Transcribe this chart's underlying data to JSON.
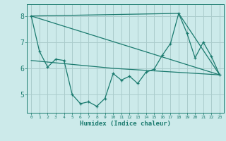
{
  "xlabel": "Humidex (Indice chaleur)",
  "bg_color": "#cceaea",
  "grid_color": "#aacccc",
  "line_color": "#1a7a6e",
  "xlim": [
    -0.5,
    23.5
  ],
  "ylim": [
    4.3,
    8.45
  ],
  "yticks": [
    5,
    6,
    7,
    8
  ],
  "xticks": [
    0,
    1,
    2,
    3,
    4,
    5,
    6,
    7,
    8,
    9,
    10,
    11,
    12,
    13,
    14,
    15,
    16,
    17,
    18,
    19,
    20,
    21,
    22,
    23
  ],
  "line1_x": [
    0,
    1,
    2,
    3,
    4,
    5,
    6,
    7,
    8,
    9,
    10,
    11,
    12,
    13,
    14,
    15,
    16,
    17,
    18,
    19,
    20,
    21,
    22,
    23
  ],
  "line1_y": [
    8.0,
    6.65,
    6.05,
    6.35,
    6.3,
    5.0,
    4.65,
    4.72,
    4.55,
    4.85,
    5.8,
    5.55,
    5.7,
    5.42,
    5.85,
    5.97,
    6.5,
    6.95,
    8.1,
    7.35,
    6.4,
    7.0,
    6.45,
    5.75
  ],
  "line2_x": [
    0,
    23
  ],
  "line2_y": [
    8.0,
    5.75
  ],
  "line3_x": [
    0,
    18,
    23
  ],
  "line3_y": [
    8.0,
    8.1,
    5.75
  ],
  "line4_x": [
    0,
    10,
    23
  ],
  "line4_y": [
    6.3,
    6.0,
    5.75
  ]
}
